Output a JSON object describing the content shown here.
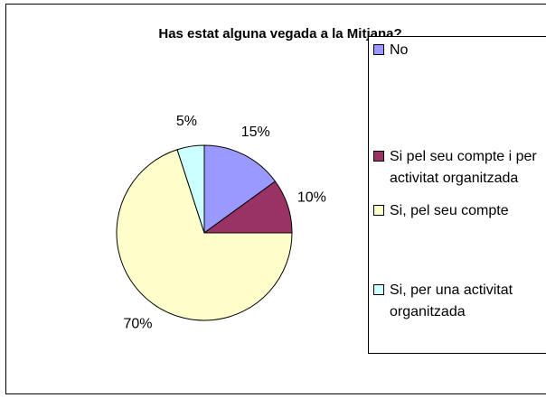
{
  "chart_data": {
    "type": "pie",
    "title": "Has estat alguna vegada a la Mitjana?",
    "categories": [
      "No",
      "Si pel seu compte i per activitat organitzada",
      "Si, pel seu compte",
      "Si, per una activitat organitzada"
    ],
    "values": [
      15,
      10,
      70,
      5
    ],
    "value_labels": [
      "15%",
      "10%",
      "70%",
      "5%"
    ],
    "colors": [
      "#9999ff",
      "#993366",
      "#ffffcc",
      "#ccffff"
    ]
  }
}
